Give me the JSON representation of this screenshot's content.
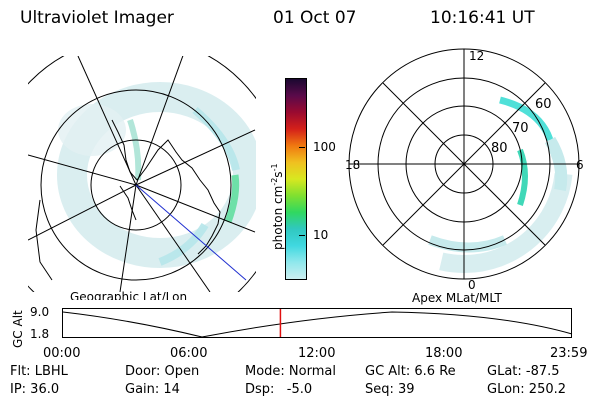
{
  "header": {
    "title": "Ultraviolet Imager",
    "date": "01 Oct 07",
    "time": "10:16:41 UT"
  },
  "colorbar": {
    "unit_label": "photon cm",
    "unit_sup1": "-2",
    "unit_mid": "s",
    "unit_sup2": "-1",
    "ticks": [
      "100",
      "10"
    ],
    "colors": [
      "#1a0830",
      "#5a0a4a",
      "#9a0a30",
      "#d4201a",
      "#f07810",
      "#f0c020",
      "#d8e820",
      "#80e030",
      "#30d860",
      "#30c8c0",
      "#40d8e0",
      "#90e8ec",
      "#cceef0"
    ]
  },
  "geo_panel": {
    "label": "Geographic Lat/Lon"
  },
  "mag_panel": {
    "label": "Apex MLat/MLT",
    "mlt_labels": {
      "top": "12",
      "left": "18",
      "right": "6",
      "bottom": "0"
    },
    "lat_labels": [
      "60",
      "70",
      "80"
    ]
  },
  "timeline": {
    "ylabel": "GC Alt",
    "y_ticks": [
      "9.0",
      "1.8"
    ],
    "x_ticks": [
      "00:00",
      "06:00",
      "12:00",
      "18:00",
      "23:59"
    ],
    "current_fraction": 0.428
  },
  "status": {
    "row1": [
      {
        "name": "Flt",
        "text": "Flt: LBHL"
      },
      {
        "name": "Door",
        "text": "Door: Open"
      },
      {
        "name": "Mode",
        "text": "Mode: Normal"
      },
      {
        "name": "GC Alt",
        "text": "GC Alt: 6.6 Re"
      },
      {
        "name": "GLat",
        "text": "GLat: -87.5"
      }
    ],
    "row2": [
      {
        "name": "IP",
        "text": "IP: 36.0"
      },
      {
        "name": "Gain",
        "text": "Gain: 14"
      },
      {
        "name": "Dsp",
        "text": "Dsp:   -5.0"
      },
      {
        "name": "Seq",
        "text": "Seq: 39"
      },
      {
        "name": "GLon",
        "text": "GLon: 250.2"
      }
    ]
  }
}
